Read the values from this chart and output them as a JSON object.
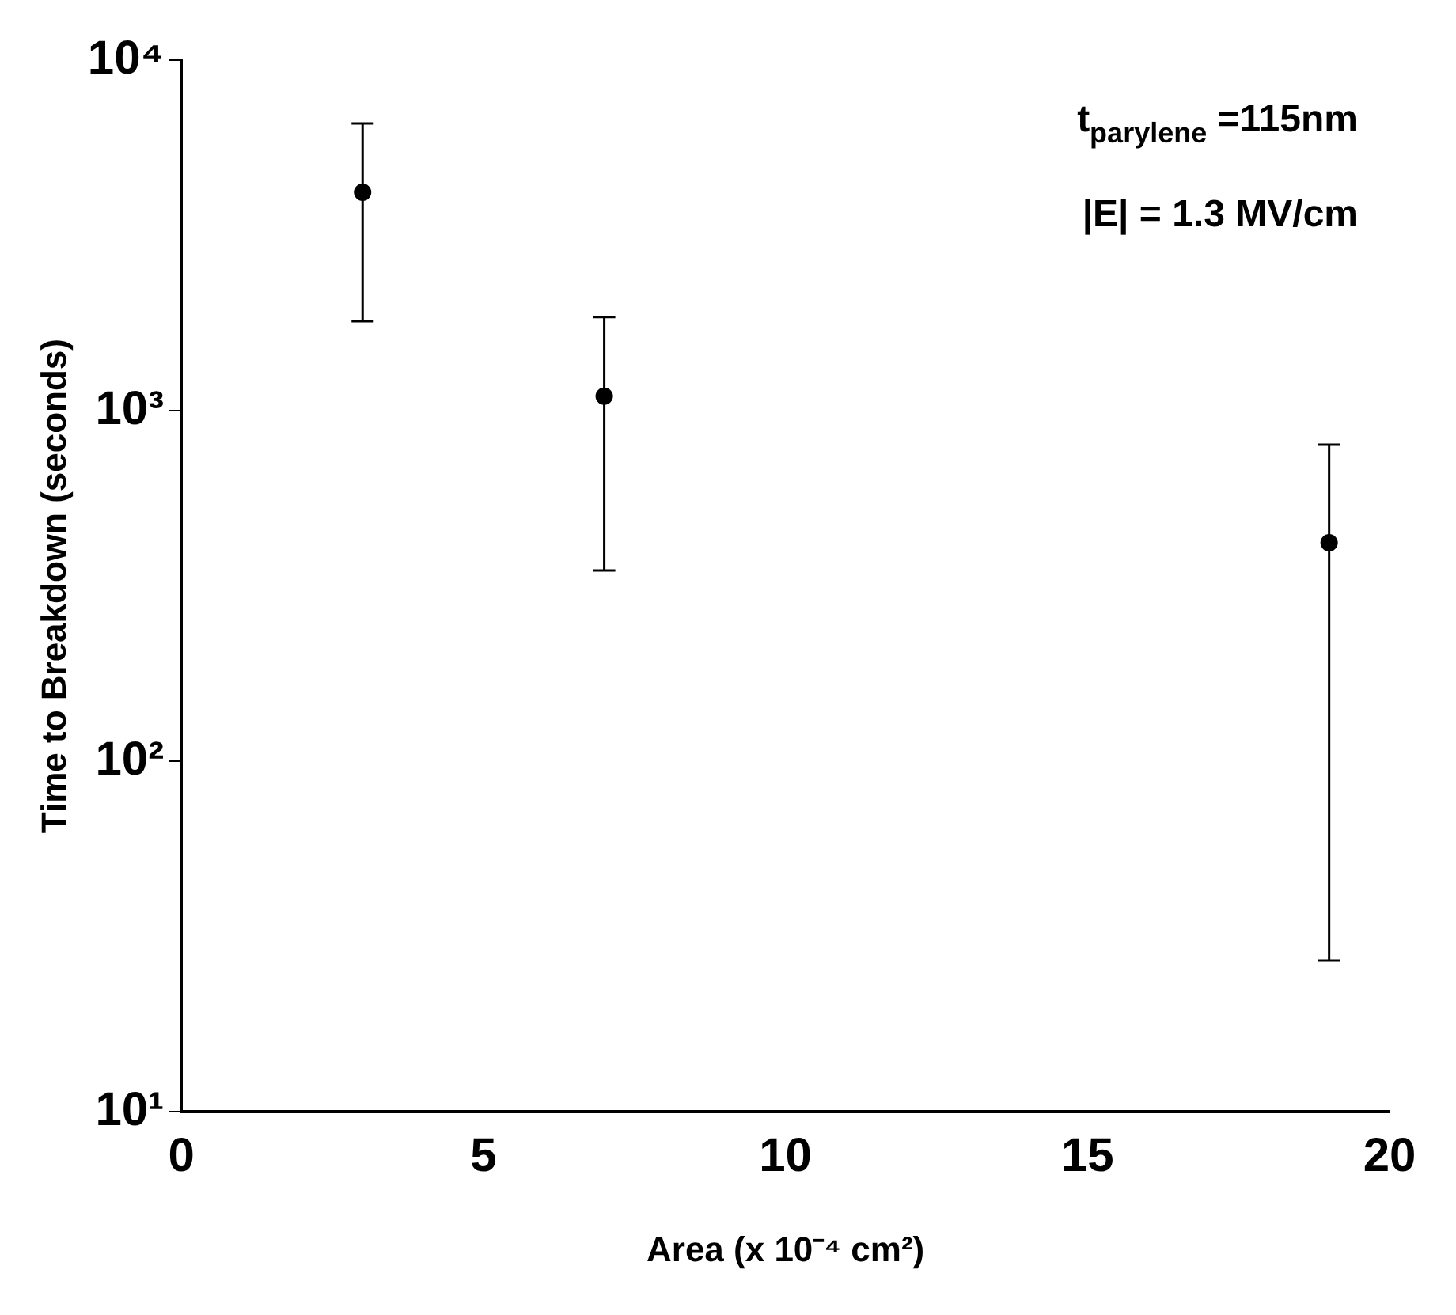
{
  "chart_data": {
    "type": "scatter",
    "xlabel": "Area (x 10⁻⁴ cm²)",
    "ylabel": "Time to Breakdown (seconds)",
    "x": [
      3,
      7,
      19
    ],
    "series": [
      {
        "color": "#000000",
        "values": [
          4200,
          1100,
          420
        ],
        "errors": [
          [
            1800,
            6600
          ],
          [
            350,
            1850
          ],
          [
            27,
            800
          ]
        ]
      }
    ],
    "xlim": [
      0,
      20
    ],
    "xticks": [
      0,
      5,
      10,
      15,
      20
    ],
    "ylim": [
      10,
      10000
    ],
    "yticks": [
      {
        "value": 10,
        "label": "10¹"
      },
      {
        "value": 100,
        "label": "10²"
      },
      {
        "value": 1000,
        "label": "10³"
      },
      {
        "value": 10000,
        "label": "10⁴"
      }
    ],
    "log": "y",
    "grid": false,
    "legend": false,
    "marker": "circle",
    "annotations": [
      "t$_{parylene}$ =115nm",
      "|E| = 1.3 MV/cm"
    ]
  }
}
